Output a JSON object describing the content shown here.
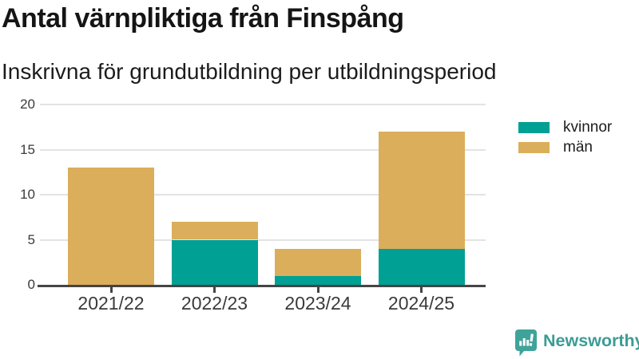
{
  "chart_data": {
    "type": "bar",
    "stacked": true,
    "title": "Antal värnpliktiga från Finspång",
    "subtitle": "Inskrivna för grundutbildning per utbildningsperiod",
    "categories": [
      "2021/22",
      "2022/23",
      "2023/24",
      "2024/25"
    ],
    "series": [
      {
        "name": "kvinnor",
        "color": "#00a094",
        "values": [
          0,
          5,
          1,
          4
        ]
      },
      {
        "name": "män",
        "color": "#dbae5b",
        "values": [
          13,
          2,
          3,
          13
        ]
      }
    ],
    "totals": [
      13,
      7,
      4,
      17
    ],
    "xlabel": "",
    "ylabel": "",
    "ylim": [
      0,
      20
    ],
    "yticks": [
      0,
      5,
      10,
      15,
      20
    ],
    "grid": true,
    "legend_position": "right"
  },
  "footer": {
    "brand": "Newsworthy",
    "brand_color": "#3c9c95",
    "logo_icon": "bar-chart-speech-bubble"
  }
}
